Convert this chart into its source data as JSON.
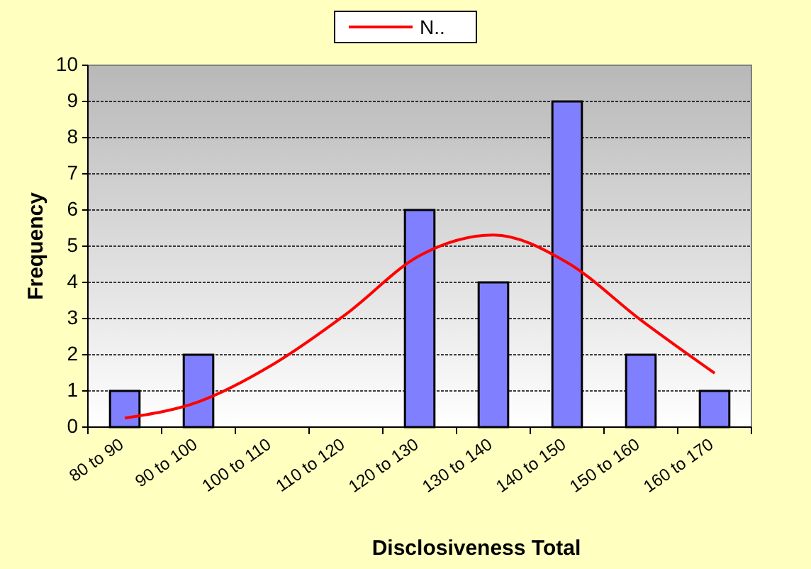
{
  "chart_data": {
    "type": "bar",
    "xlabel": "Disclosiveness Total",
    "ylabel": "Frequency",
    "categories": [
      "80 to 90",
      "90 to 100",
      "100 to 110",
      "110 to 120",
      "120 to 130",
      "130 to 140",
      "140 to 150",
      "150 to 160",
      "160 to 170"
    ],
    "values": [
      1,
      2,
      0,
      0,
      6,
      4,
      9,
      2,
      1
    ],
    "color": "#8080ff",
    "series": [
      {
        "type": "line",
        "name": "N..",
        "color": "#ff0000",
        "values": [
          0.25,
          0.7,
          1.72,
          3.12,
          4.74,
          5.31,
          4.55,
          2.96,
          1.49
        ]
      }
    ],
    "ylim": [
      0,
      10
    ],
    "yticks": [
      0,
      1,
      2,
      3,
      4,
      5,
      6,
      7,
      8,
      9,
      10
    ],
    "grid": "y",
    "legend": "top",
    "marker": "none",
    "line_style": "solid"
  }
}
